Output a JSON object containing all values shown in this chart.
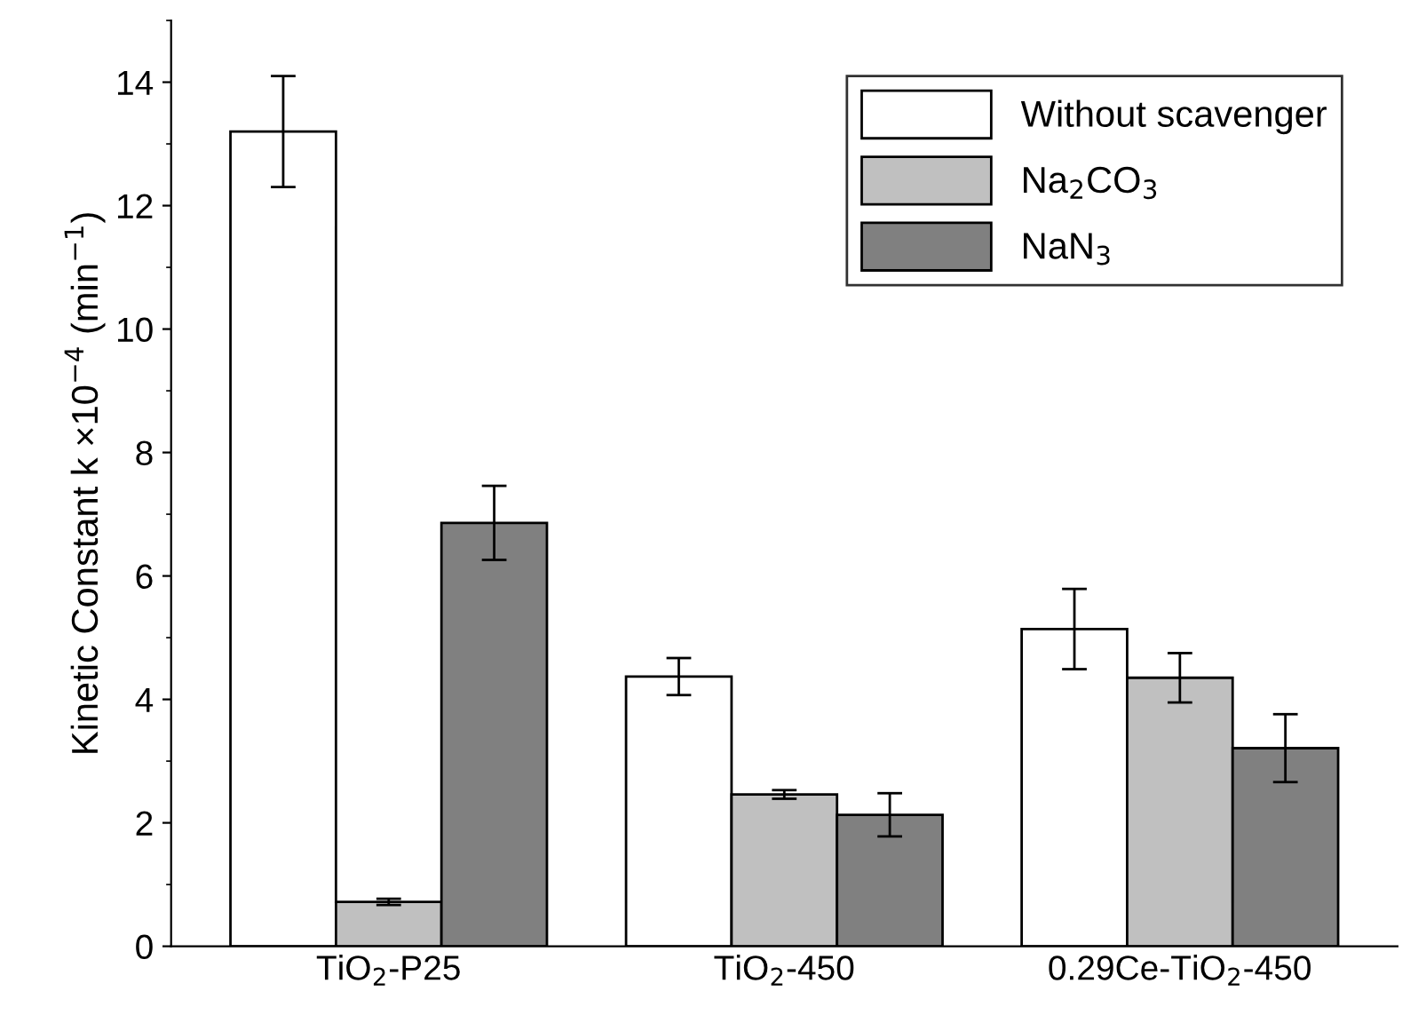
{
  "chart_data": {
    "type": "bar",
    "ylabel": "Kinetic Constant k ×10$^{−4}$ (min$^{−1}$)",
    "categories": [
      "TiO$_{2}$-P25",
      "TiO$_{2}$-450",
      "0.29Ce-TiO$_{2}$-450"
    ],
    "series": [
      {
        "name": "Without scavenger",
        "color": "#ffffff",
        "values": [
          13.2,
          4.37,
          5.14
        ],
        "errors": [
          0.9,
          0.3,
          0.65
        ]
      },
      {
        "name": "Na$_{2}$CO$_{3}$",
        "color": "#c0c0c0",
        "values": [
          0.72,
          2.46,
          4.35
        ],
        "errors": [
          0.05,
          0.07,
          0.4
        ]
      },
      {
        "name": "NaN$_{3}$",
        "color": "#808080",
        "values": [
          6.86,
          2.13,
          3.21
        ],
        "errors": [
          0.6,
          0.35,
          0.55
        ]
      }
    ],
    "ylim": [
      0,
      15
    ],
    "yticks": [
      0,
      2,
      4,
      6,
      8,
      10,
      12,
      14
    ],
    "grid": false,
    "legend": "top right"
  }
}
